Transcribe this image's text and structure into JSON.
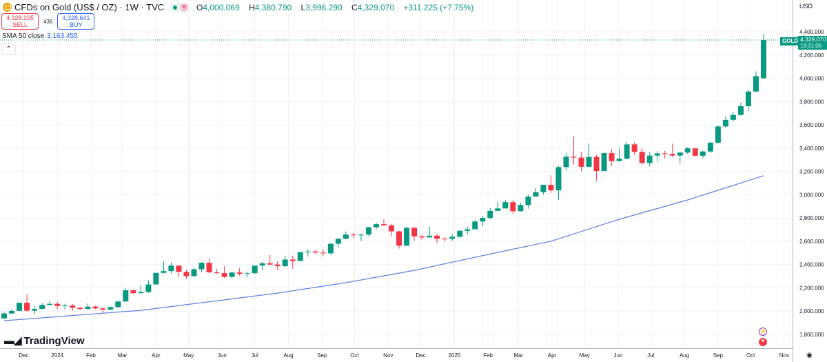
{
  "header": {
    "title": "CFDs on Gold (US$ / OZ) · 1W · TVC",
    "flag_badge": "≡",
    "open_label": "O",
    "open": "4,000.069",
    "high_label": "H",
    "high": "4,380.790",
    "low_label": "L",
    "low": "3,996.290",
    "close_label": "C",
    "close": "4,329.070",
    "change": "+311.225 (+7.75%)"
  },
  "trade": {
    "sell_price": "4,328.205",
    "sell_label": "SELL",
    "spread": "436",
    "buy_price": "4,328.641",
    "buy_label": "BUY"
  },
  "indicator": {
    "label": "SMA 50 close",
    "value": "3,163.455"
  },
  "collapse_icon": "chevron-up",
  "currency": "USD",
  "brand": {
    "mark": "TV",
    "name": "TradingView"
  },
  "last_price": {
    "symbol": "GOLD",
    "price": "4,329.070",
    "countdown": "18:31:06"
  },
  "events": [
    "lightning-icon",
    "us-flag-icon"
  ],
  "colors": {
    "up": "#089981",
    "down": "#f23645",
    "sma": "#5b7fe0",
    "grid": "#eef1f5"
  },
  "chart_data": {
    "type": "candlestick",
    "interval": "1W",
    "grid": true,
    "y_axis": {
      "min": 1800,
      "max": 4400,
      "step": 200,
      "ticks": [
        "1,800.000",
        "2,000.000",
        "2,200.000",
        "2,400.000",
        "2,600.000",
        "2,800.000",
        "3,000.000",
        "3,200.000",
        "3,400.000",
        "3,600.000",
        "3,800.000",
        "4,000.000",
        "4,200.000",
        "4,400.000"
      ]
    },
    "x_axis": {
      "labels": [
        {
          "date": "2023-12-01",
          "text": "Dec"
        },
        {
          "date": "2024-01-01",
          "text": "2024"
        },
        {
          "date": "2024-02-01",
          "text": "Feb"
        },
        {
          "date": "2024-03-01",
          "text": "Mar"
        },
        {
          "date": "2024-04-01",
          "text": "Apr"
        },
        {
          "date": "2024-05-01",
          "text": "May"
        },
        {
          "date": "2024-06-01",
          "text": "Jun"
        },
        {
          "date": "2024-07-01",
          "text": "Jul"
        },
        {
          "date": "2024-08-01",
          "text": "Aug"
        },
        {
          "date": "2024-09-01",
          "text": "Sep"
        },
        {
          "date": "2024-10-01",
          "text": "Oct"
        },
        {
          "date": "2024-11-01",
          "text": "Nov"
        },
        {
          "date": "2024-12-01",
          "text": "Dec"
        },
        {
          "date": "2025-01-01",
          "text": "2025"
        },
        {
          "date": "2025-02-01",
          "text": "Feb"
        },
        {
          "date": "2025-03-01",
          "text": "Mar"
        },
        {
          "date": "2025-04-01",
          "text": "Apr"
        },
        {
          "date": "2025-05-01",
          "text": "May"
        },
        {
          "date": "2025-06-01",
          "text": "Jun"
        },
        {
          "date": "2025-07-01",
          "text": "Jul"
        },
        {
          "date": "2025-08-01",
          "text": "Aug"
        },
        {
          "date": "2025-09-01",
          "text": "Sep"
        },
        {
          "date": "2025-10-01",
          "text": "Oct"
        },
        {
          "date": "2025-11-01",
          "text": "Nov"
        }
      ]
    },
    "columns": [
      "date",
      "open",
      "high",
      "low",
      "close"
    ],
    "candles": [
      [
        "2023-11-13",
        1938,
        1993,
        1932,
        1980
      ],
      [
        "2023-11-20",
        1980,
        2017,
        1975,
        2002
      ],
      [
        "2023-11-27",
        2002,
        2075,
        1999,
        2072
      ],
      [
        "2023-12-04",
        2072,
        2146,
        1996,
        2004
      ],
      [
        "2023-12-11",
        2004,
        2047,
        1973,
        2019
      ],
      [
        "2023-12-18",
        2019,
        2070,
        2016,
        2053
      ],
      [
        "2023-12-25",
        2053,
        2088,
        2048,
        2063
      ],
      [
        "2024-01-01",
        2063,
        2078,
        2017,
        2045
      ],
      [
        "2024-01-08",
        2045,
        2063,
        2013,
        2049
      ],
      [
        "2024-01-15",
        2049,
        2062,
        2001,
        2029
      ],
      [
        "2024-01-22",
        2029,
        2036,
        2009,
        2018
      ],
      [
        "2024-01-29",
        2018,
        2065,
        2016,
        2039
      ],
      [
        "2024-02-05",
        2039,
        2049,
        2015,
        2024
      ],
      [
        "2024-02-12",
        2024,
        2031,
        1984,
        2013
      ],
      [
        "2024-02-19",
        2013,
        2041,
        2010,
        2035
      ],
      [
        "2024-02-26",
        2035,
        2088,
        2024,
        2083
      ],
      [
        "2024-03-04",
        2083,
        2195,
        2080,
        2179
      ],
      [
        "2024-03-11",
        2179,
        2185,
        2146,
        2155
      ],
      [
        "2024-03-18",
        2155,
        2222,
        2146,
        2165
      ],
      [
        "2024-03-25",
        2165,
        2265,
        2158,
        2229
      ],
      [
        "2024-04-01",
        2229,
        2330,
        2228,
        2329
      ],
      [
        "2024-04-08",
        2329,
        2431,
        2319,
        2344
      ],
      [
        "2024-04-15",
        2344,
        2418,
        2325,
        2391
      ],
      [
        "2024-04-22",
        2391,
        2392,
        2291,
        2337
      ],
      [
        "2024-04-29",
        2337,
        2353,
        2277,
        2301
      ],
      [
        "2024-05-06",
        2301,
        2378,
        2291,
        2360
      ],
      [
        "2024-05-13",
        2360,
        2422,
        2333,
        2415
      ],
      [
        "2024-05-20",
        2415,
        2450,
        2325,
        2334
      ],
      [
        "2024-05-27",
        2334,
        2364,
        2320,
        2327
      ],
      [
        "2024-06-03",
        2327,
        2387,
        2286,
        2294
      ],
      [
        "2024-06-10",
        2294,
        2335,
        2279,
        2332
      ],
      [
        "2024-06-17",
        2332,
        2368,
        2304,
        2321
      ],
      [
        "2024-06-24",
        2321,
        2340,
        2293,
        2326
      ],
      [
        "2024-07-01",
        2326,
        2392,
        2318,
        2391
      ],
      [
        "2024-07-08",
        2391,
        2424,
        2352,
        2411
      ],
      [
        "2024-07-15",
        2411,
        2483,
        2393,
        2400
      ],
      [
        "2024-07-22",
        2400,
        2431,
        2353,
        2386
      ],
      [
        "2024-07-29",
        2386,
        2477,
        2375,
        2443
      ],
      [
        "2024-08-05",
        2443,
        2477,
        2364,
        2431
      ],
      [
        "2024-08-12",
        2431,
        2509,
        2437,
        2507
      ],
      [
        "2024-08-19",
        2507,
        2531,
        2469,
        2512
      ],
      [
        "2024-08-26",
        2512,
        2525,
        2491,
        2503
      ],
      [
        "2024-09-02",
        2503,
        2529,
        2471,
        2497
      ],
      [
        "2024-09-09",
        2497,
        2586,
        2485,
        2578
      ],
      [
        "2024-09-16",
        2578,
        2625,
        2546,
        2622
      ],
      [
        "2024-09-23",
        2622,
        2685,
        2616,
        2658
      ],
      [
        "2024-09-30",
        2658,
        2672,
        2625,
        2653
      ],
      [
        "2024-10-07",
        2653,
        2665,
        2603,
        2657
      ],
      [
        "2024-10-14",
        2657,
        2723,
        2643,
        2721
      ],
      [
        "2024-10-21",
        2721,
        2758,
        2703,
        2747
      ],
      [
        "2024-10-28",
        2747,
        2790,
        2731,
        2737
      ],
      [
        "2024-11-04",
        2737,
        2750,
        2643,
        2685
      ],
      [
        "2024-11-11",
        2685,
        2690,
        2537,
        2562
      ],
      [
        "2024-11-18",
        2562,
        2721,
        2564,
        2716
      ],
      [
        "2024-11-25",
        2716,
        2721,
        2605,
        2643
      ],
      [
        "2024-12-02",
        2643,
        2657,
        2614,
        2633
      ],
      [
        "2024-12-09",
        2633,
        2726,
        2632,
        2648
      ],
      [
        "2024-12-16",
        2648,
        2666,
        2583,
        2622
      ],
      [
        "2024-12-23",
        2622,
        2639,
        2599,
        2621
      ],
      [
        "2024-12-30",
        2621,
        2665,
        2603,
        2639
      ],
      [
        "2025-01-06",
        2639,
        2697,
        2630,
        2690
      ],
      [
        "2025-01-13",
        2690,
        2726,
        2657,
        2703
      ],
      [
        "2025-01-20",
        2703,
        2786,
        2707,
        2770
      ],
      [
        "2025-01-27",
        2770,
        2817,
        2730,
        2800
      ],
      [
        "2025-02-03",
        2800,
        2886,
        2790,
        2861
      ],
      [
        "2025-02-10",
        2861,
        2942,
        2864,
        2882
      ],
      [
        "2025-02-17",
        2882,
        2954,
        2885,
        2936
      ],
      [
        "2025-02-24",
        2936,
        2956,
        2833,
        2858
      ],
      [
        "2025-03-03",
        2858,
        2930,
        2857,
        2911
      ],
      [
        "2025-03-10",
        2911,
        3005,
        2880,
        2984
      ],
      [
        "2025-03-17",
        2984,
        3057,
        2982,
        3022
      ],
      [
        "2025-03-24",
        3022,
        3087,
        3000,
        3085
      ],
      [
        "2025-03-31",
        3085,
        3167,
        3015,
        3037
      ],
      [
        "2025-04-07",
        3037,
        3245,
        2956,
        3237
      ],
      [
        "2025-04-14",
        3237,
        3358,
        3210,
        3327
      ],
      [
        "2025-04-21",
        3327,
        3500,
        3260,
        3319
      ],
      [
        "2025-04-28",
        3319,
        3368,
        3202,
        3240
      ],
      [
        "2025-05-05",
        3240,
        3438,
        3230,
        3325
      ],
      [
        "2025-05-12",
        3325,
        3344,
        3120,
        3203
      ],
      [
        "2025-05-19",
        3203,
        3366,
        3205,
        3357
      ],
      [
        "2025-05-26",
        3357,
        3392,
        3245,
        3289
      ],
      [
        "2025-06-02",
        3289,
        3403,
        3286,
        3310
      ],
      [
        "2025-06-09",
        3310,
        3451,
        3301,
        3432
      ],
      [
        "2025-06-16",
        3432,
        3452,
        3340,
        3368
      ],
      [
        "2025-06-23",
        3368,
        3398,
        3256,
        3273
      ],
      [
        "2025-06-30",
        3273,
        3365,
        3246,
        3336
      ],
      [
        "2025-07-07",
        3336,
        3374,
        3282,
        3355
      ],
      [
        "2025-07-14",
        3355,
        3377,
        3310,
        3350
      ],
      [
        "2025-07-21",
        3350,
        3438,
        3324,
        3336
      ],
      [
        "2025-07-28",
        3336,
        3363,
        3268,
        3362
      ],
      [
        "2025-08-04",
        3362,
        3409,
        3348,
        3398
      ],
      [
        "2025-08-11",
        3398,
        3400,
        3330,
        3335
      ],
      [
        "2025-08-18",
        3335,
        3378,
        3311,
        3371
      ],
      [
        "2025-08-25",
        3371,
        3453,
        3358,
        3447
      ],
      [
        "2025-09-01",
        3447,
        3600,
        3436,
        3586
      ],
      [
        "2025-09-08",
        3586,
        3674,
        3577,
        3643
      ],
      [
        "2025-09-15",
        3643,
        3707,
        3629,
        3685
      ],
      [
        "2025-09-22",
        3685,
        3791,
        3679,
        3760
      ],
      [
        "2025-09-29",
        3760,
        3897,
        3720,
        3886
      ],
      [
        "2025-10-06",
        3886,
        4059,
        3885,
        4018
      ],
      [
        "2025-10-13",
        4000.069,
        4380.79,
        3996.29,
        4329.07
      ]
    ],
    "sma50": [
      [
        "2023-11-13",
        1918
      ],
      [
        "2024-03-18",
        2007
      ],
      [
        "2024-07-22",
        2155
      ],
      [
        "2024-09-23",
        2244
      ],
      [
        "2024-11-25",
        2350
      ],
      [
        "2025-02-10",
        2505
      ],
      [
        "2025-03-31",
        2600
      ],
      [
        "2025-06-02",
        2789
      ],
      [
        "2025-08-04",
        2955
      ],
      [
        "2025-10-13",
        3163.455
      ]
    ]
  }
}
